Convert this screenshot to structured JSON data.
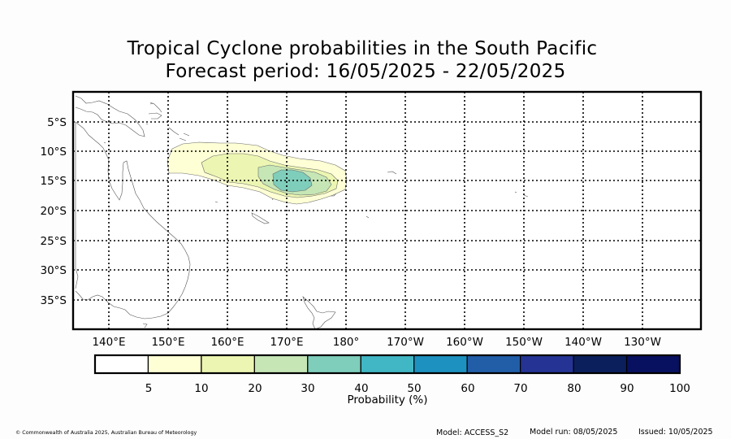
{
  "title_line1": "Tropical Cyclone probabilities in the South Pacific",
  "title_line2": "Forecast period: 16/05/2025 - 22/05/2025",
  "map": {
    "lat_labels": [
      "5°S",
      "10°S",
      "15°S",
      "20°S",
      "25°S",
      "30°S",
      "35°S"
    ],
    "lon_labels": [
      "140°E",
      "150°E",
      "160°E",
      "170°E",
      "180°",
      "170°W",
      "160°W",
      "150°W",
      "140°W",
      "130°W"
    ],
    "gridlines": "dotted"
  },
  "colorbar": {
    "label": "Probability (%)",
    "ticks": [
      "5",
      "10",
      "20",
      "30",
      "40",
      "50",
      "60",
      "70",
      "80",
      "90",
      "100"
    ],
    "colors": [
      "#ffffff",
      "#ffffd6",
      "#ecf6b2",
      "#c6e6b6",
      "#7fcdbb",
      "#41b6c4",
      "#1d91c0",
      "#225ea8",
      "#253494",
      "#0b1f5c",
      "#081060"
    ]
  },
  "footer": {
    "copyright": "© Commonwealth of Australia 2025, Australian Bureau of Meteorology",
    "model": "Model: ACCESS_S2",
    "model_run": "Model run: 08/05/2025",
    "issued": "Issued: 10/05/2025"
  }
}
